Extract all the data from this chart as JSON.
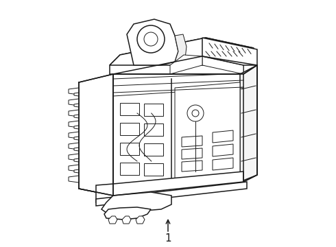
{
  "bg_color": "#ffffff",
  "line_color": "#1a1a1a",
  "line_width": 1.1,
  "thin_lw": 0.7,
  "label": "1",
  "fig_width": 4.9,
  "fig_height": 3.6,
  "dpi": 100
}
